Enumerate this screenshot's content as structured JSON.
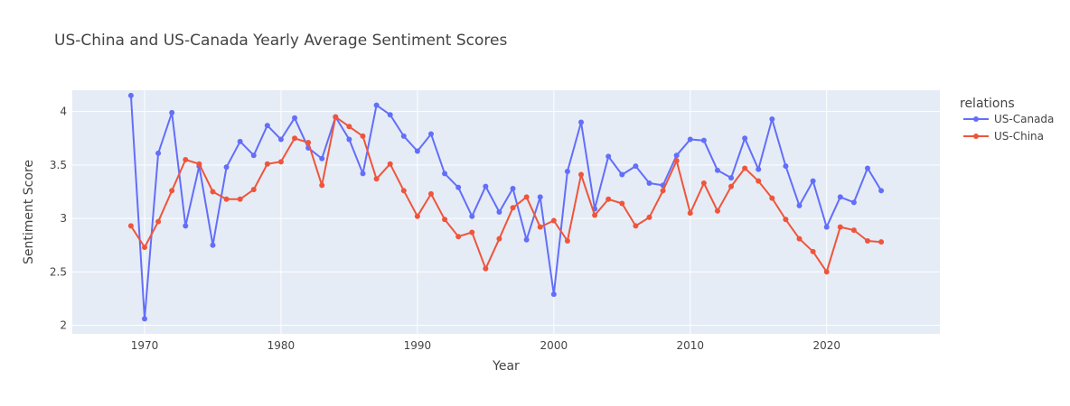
{
  "chart_data": {
    "type": "line",
    "title": "US-China and US-Canada Yearly Average Sentiment Scores",
    "xlabel": "Year",
    "ylabel": "Sentiment Score",
    "xlim": [
      1964.7,
      2028.3
    ],
    "ylim": [
      1.92,
      4.2
    ],
    "xticks": [
      1970,
      1980,
      1990,
      2000,
      2010,
      2020
    ],
    "yticks": [
      2,
      2.5,
      3,
      3.5,
      4
    ],
    "ytick_labels": [
      "2",
      "2.5",
      "3",
      "3.5",
      "4"
    ],
    "grid": true,
    "legend": {
      "title": "relations",
      "placement": "top-right outside"
    },
    "x": [
      1969,
      1970,
      1971,
      1972,
      1973,
      1974,
      1975,
      1976,
      1977,
      1978,
      1979,
      1980,
      1981,
      1982,
      1983,
      1984,
      1985,
      1986,
      1987,
      1988,
      1989,
      1990,
      1991,
      1992,
      1993,
      1994,
      1995,
      1996,
      1997,
      1998,
      1999,
      2000,
      2001,
      2002,
      2003,
      2004,
      2005,
      2006,
      2007,
      2008,
      2009,
      2010,
      2011,
      2012,
      2013,
      2014,
      2015,
      2016,
      2017,
      2018,
      2019,
      2020,
      2021,
      2022,
      2023,
      2024
    ],
    "series": [
      {
        "name": "US-Canada",
        "color": "#636efa",
        "values": [
          4.15,
          2.06,
          3.61,
          3.99,
          2.93,
          3.49,
          2.75,
          3.48,
          3.72,
          3.59,
          3.87,
          3.74,
          3.94,
          3.66,
          3.56,
          3.95,
          3.74,
          3.42,
          4.06,
          3.97,
          3.77,
          3.63,
          3.79,
          3.42,
          3.29,
          3.02,
          3.3,
          3.06,
          3.28,
          2.8,
          3.2,
          2.29,
          3.44,
          3.9,
          3.09,
          3.58,
          3.41,
          3.49,
          3.33,
          3.31,
          3.59,
          3.74,
          3.73,
          3.45,
          3.38,
          3.75,
          3.46,
          3.93,
          3.49,
          3.12,
          3.35,
          2.92,
          3.2,
          3.15,
          3.47,
          3.26
        ]
      },
      {
        "name": "US-China",
        "color": "#ef553b",
        "values": [
          2.93,
          2.73,
          2.97,
          3.26,
          3.55,
          3.51,
          3.25,
          3.18,
          3.18,
          3.27,
          3.51,
          3.53,
          3.75,
          3.71,
          3.31,
          3.95,
          3.86,
          3.77,
          3.37,
          3.51,
          3.26,
          3.02,
          3.23,
          2.99,
          2.83,
          2.87,
          2.53,
          2.81,
          3.1,
          3.2,
          2.92,
          2.98,
          2.79,
          3.41,
          3.03,
          3.18,
          3.14,
          2.93,
          3.01,
          3.26,
          3.54,
          3.05,
          3.33,
          3.07,
          3.3,
          3.47,
          3.35,
          3.19,
          2.99,
          2.81,
          2.69,
          2.5,
          2.92,
          2.89,
          2.79,
          2.78
        ]
      }
    ],
    "plot_background": "#e5ecf6"
  }
}
